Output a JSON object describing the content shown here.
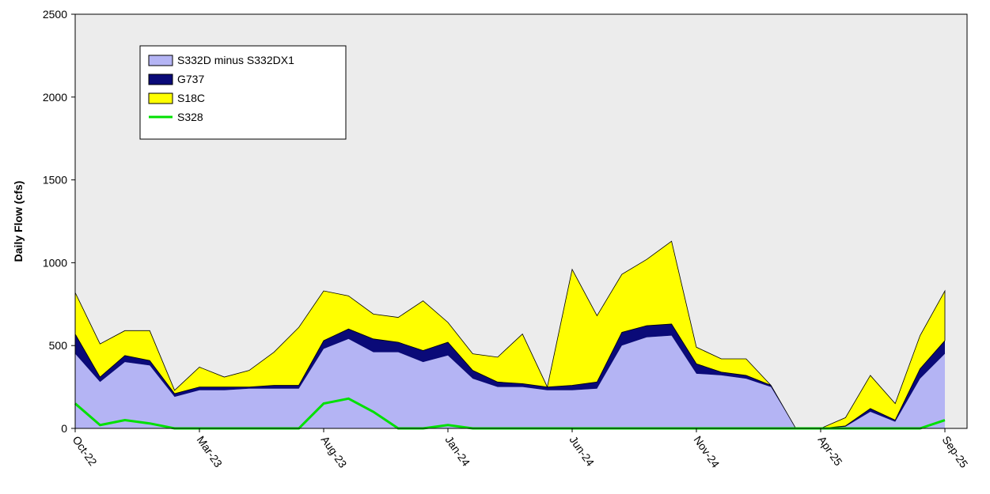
{
  "chart_data": {
    "type": "stacked-area",
    "y_label": "Daily Flow (cfs)",
    "x": [
      "Oct-22",
      "Nov-22",
      "Dec-22",
      "Jan-23",
      "Feb-23",
      "Mar-23",
      "Apr-23",
      "May-23",
      "Jun-23",
      "Jul-23",
      "Aug-23",
      "Sep-23",
      "Oct-23",
      "Nov-23",
      "Dec-23",
      "Jan-24",
      "Feb-24",
      "Mar-24",
      "Apr-24",
      "May-24",
      "Jun-24",
      "Jul-24",
      "Aug-24",
      "Sep-24",
      "Oct-24",
      "Nov-24",
      "Dec-24",
      "Jan-25",
      "Feb-25",
      "Mar-25",
      "Apr-25",
      "May-25",
      "Jun-25",
      "Jul-25",
      "Aug-25",
      "Sep-25"
    ],
    "xticks": [
      "Oct-22",
      "Mar-23",
      "Aug-23",
      "Jan-24",
      "Jun-24",
      "Nov-24",
      "Apr-25",
      "Sep-25"
    ],
    "ylim": [
      0,
      2500
    ],
    "yticks": [
      0,
      500,
      1000,
      1500,
      2000,
      2500
    ],
    "series": [
      {
        "name": "S332D minus S332DX1",
        "color": "#b4b4f4",
        "values": [
          450,
          280,
          400,
          380,
          190,
          230,
          230,
          240,
          240,
          240,
          480,
          540,
          460,
          460,
          400,
          440,
          300,
          250,
          250,
          230,
          230,
          240,
          500,
          550,
          560,
          330,
          320,
          300,
          250,
          0,
          0,
          10,
          100,
          40,
          300,
          450
        ]
      },
      {
        "name": "G737",
        "color": "#0a0a78",
        "values": [
          120,
          30,
          40,
          30,
          20,
          20,
          20,
          10,
          20,
          20,
          50,
          60,
          80,
          60,
          70,
          80,
          50,
          30,
          20,
          20,
          30,
          40,
          80,
          70,
          70,
          60,
          20,
          20,
          10,
          0,
          0,
          5,
          20,
          10,
          60,
          80
        ]
      },
      {
        "name": "S18C",
        "color": "#ffff00",
        "values": [
          250,
          200,
          150,
          180,
          20,
          120,
          60,
          100,
          200,
          350,
          300,
          200,
          150,
          150,
          300,
          120,
          100,
          150,
          300,
          0,
          700,
          400,
          350,
          400,
          500,
          100,
          80,
          100,
          0,
          0,
          0,
          50,
          200,
          100,
          200,
          300
        ]
      },
      {
        "name": "S328",
        "color": "#00e000",
        "line": true,
        "values": [
          150,
          20,
          50,
          30,
          0,
          0,
          0,
          0,
          0,
          0,
          150,
          180,
          100,
          0,
          0,
          20,
          0,
          0,
          0,
          0,
          0,
          0,
          0,
          0,
          0,
          0,
          0,
          0,
          0,
          0,
          0,
          0,
          0,
          0,
          0,
          50
        ]
      }
    ]
  }
}
